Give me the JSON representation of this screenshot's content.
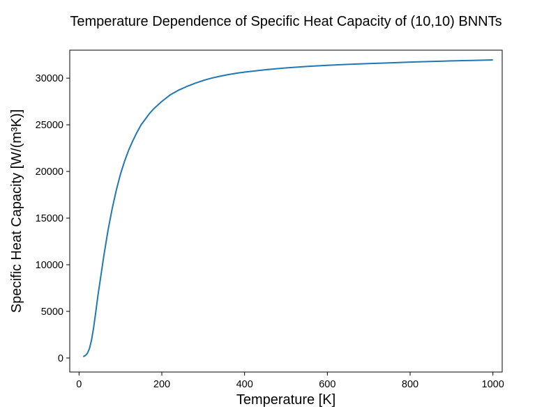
{
  "chart_data": {
    "type": "line",
    "title": "Temperature Dependence of Specific Heat Capacity of (10,10) BNNTs",
    "xlabel": "Temperature [K]",
    "ylabel": "Specific Heat Capacity [W/(m³K)]",
    "xlim": [
      -22.5,
      1022.5
    ],
    "ylim": [
      -1500,
      33000
    ],
    "xticks": [
      0,
      200,
      400,
      600,
      800,
      1000
    ],
    "yticks": [
      0,
      5000,
      10000,
      15000,
      20000,
      25000,
      30000
    ],
    "grid": false,
    "line_color": "#1f77b4",
    "series": [
      {
        "x": [
          10,
          15,
          20,
          25,
          30,
          35,
          40,
          45,
          50,
          60,
          70,
          80,
          90,
          100,
          110,
          120,
          130,
          140,
          150,
          160,
          170,
          180,
          190,
          200,
          220,
          240,
          260,
          280,
          300,
          320,
          340,
          360,
          380,
          400,
          450,
          500,
          550,
          600,
          650,
          700,
          750,
          800,
          850,
          900,
          950,
          1000
        ],
        "y": [
          150,
          260,
          500,
          1000,
          1900,
          3200,
          4800,
          6500,
          8000,
          11000,
          13700,
          16000,
          18000,
          19700,
          21100,
          22300,
          23300,
          24200,
          25000,
          25600,
          26200,
          26700,
          27100,
          27500,
          28200,
          28700,
          29100,
          29450,
          29750,
          30000,
          30200,
          30380,
          30530,
          30650,
          30900,
          31100,
          31250,
          31380,
          31480,
          31560,
          31640,
          31720,
          31790,
          31850,
          31900,
          31950
        ]
      }
    ]
  }
}
